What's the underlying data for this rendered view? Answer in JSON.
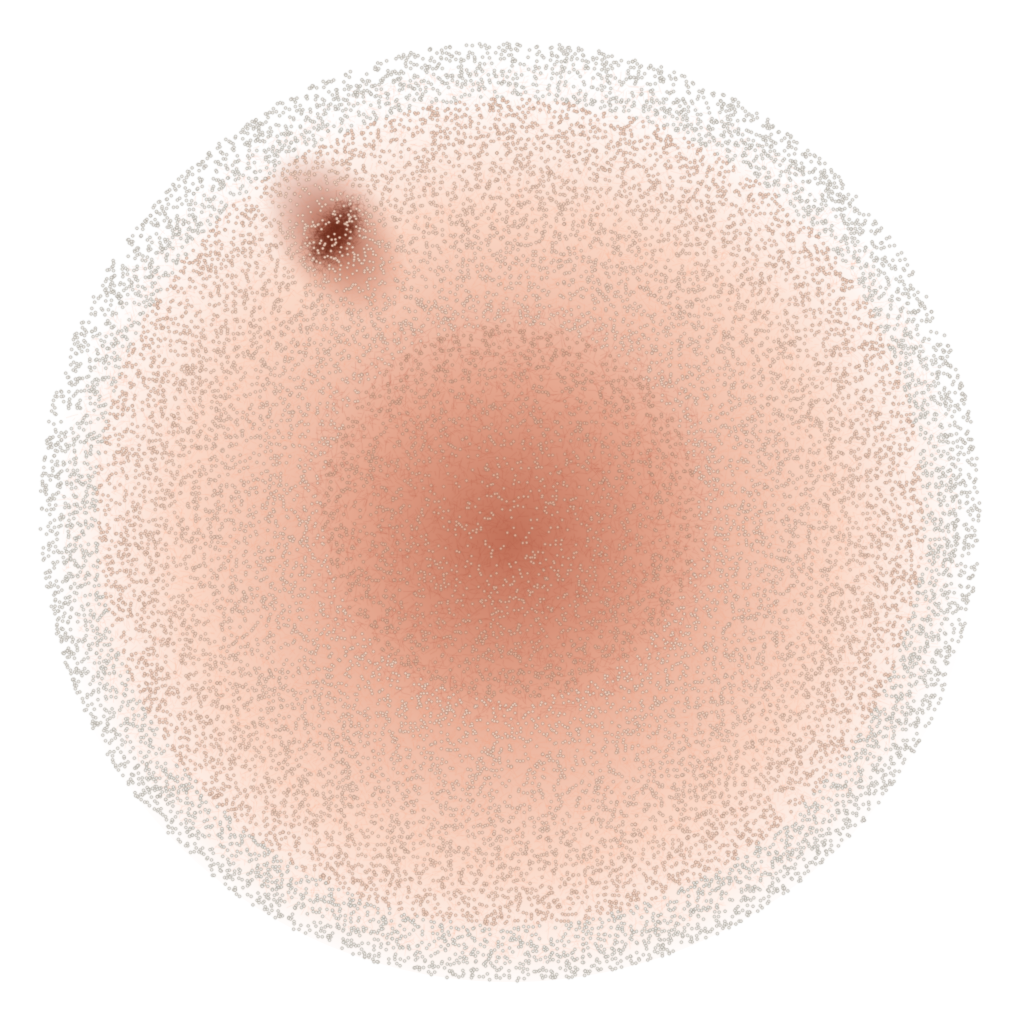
{
  "graph": {
    "layout": "force-directed",
    "node_fill": "#ffffff",
    "node_stroke": "#8c8478",
    "edge_color": "#ff8a5b",
    "edge_dense_color": "#c8472c",
    "background": "#ffffff"
  }
}
